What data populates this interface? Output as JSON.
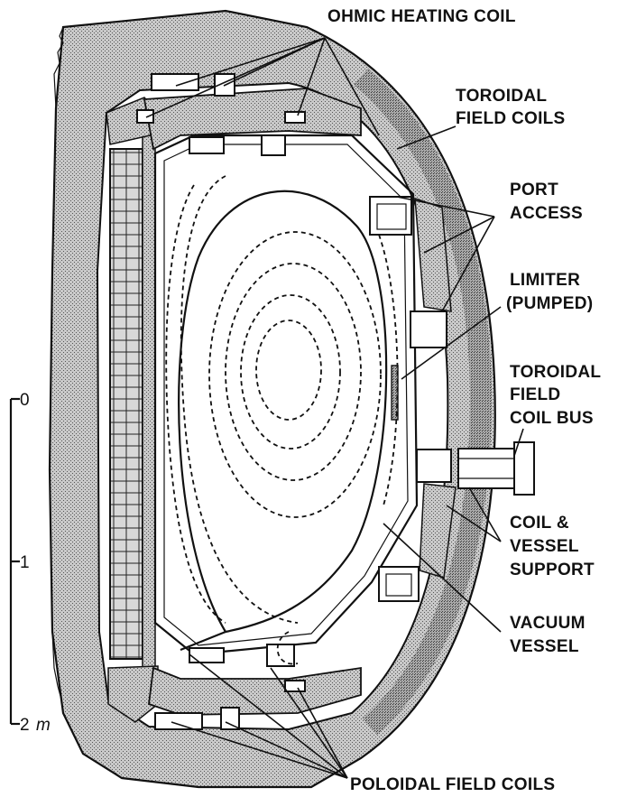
{
  "labels": {
    "ohmic": "OHMIC HEATING COIL",
    "toroidal_field_1": "TOROIDAL",
    "toroidal_field_2": "FIELD COILS",
    "port_1": "PORT",
    "port_2": "ACCESS",
    "limiter_1": "LIMITER",
    "limiter_2": "(PUMPED)",
    "tfbus_1": "TOROIDAL",
    "tfbus_2": "FIELD",
    "tfbus_3": "COIL BUS",
    "support_1": "COIL &",
    "support_2": "VESSEL",
    "support_3": "SUPPORT",
    "vacuum_1": "VACUUM",
    "vacuum_2": "VESSEL",
    "poloidal": "POLOIDAL FIELD COILS"
  },
  "scale": {
    "tick_0": "0",
    "tick_1": "1",
    "tick_2": "2",
    "unit": "m"
  },
  "colors": {
    "ink": "#111111",
    "stipple_light": "#b8b8b8",
    "stipple_dark": "#8a8a8a",
    "paper": "#ffffff"
  }
}
